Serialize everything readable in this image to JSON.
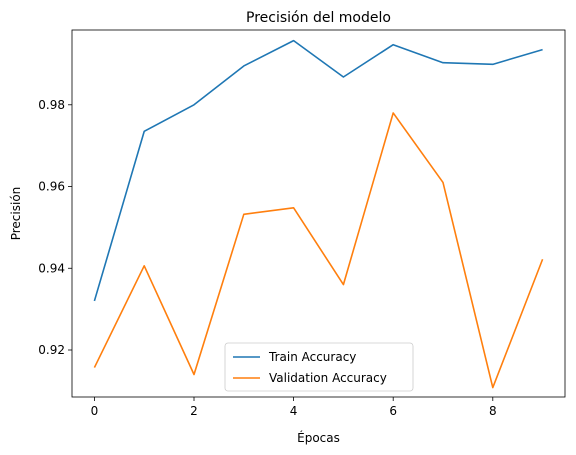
{
  "chart_data": {
    "type": "line",
    "title": "Precisión del modelo",
    "xlabel": "Épocas",
    "ylabel": "Precisión",
    "x": [
      0,
      1,
      2,
      3,
      4,
      5,
      6,
      7,
      8,
      9
    ],
    "xlim": [
      -0.45,
      9.45
    ],
    "ylim": [
      0.9085,
      0.9983
    ],
    "xticks": [
      0,
      2,
      4,
      6,
      8
    ],
    "yticks": [
      0.92,
      0.94,
      0.96,
      0.98
    ],
    "ytick_labels": [
      "0.92",
      "0.94",
      "0.96",
      "0.98"
    ],
    "grid": false,
    "legend_position": "lower center",
    "series": [
      {
        "name": "Train Accuracy",
        "color": "#1f77b4",
        "values": [
          0.932,
          0.9735,
          0.98,
          0.9895,
          0.9957,
          0.9868,
          0.9947,
          0.9903,
          0.9899,
          0.9935
        ]
      },
      {
        "name": "Validation Accuracy",
        "color": "#ff7f0e",
        "values": [
          0.9157,
          0.9406,
          0.914,
          0.9532,
          0.9548,
          0.936,
          0.978,
          0.961,
          0.9108,
          0.9422
        ]
      }
    ]
  }
}
